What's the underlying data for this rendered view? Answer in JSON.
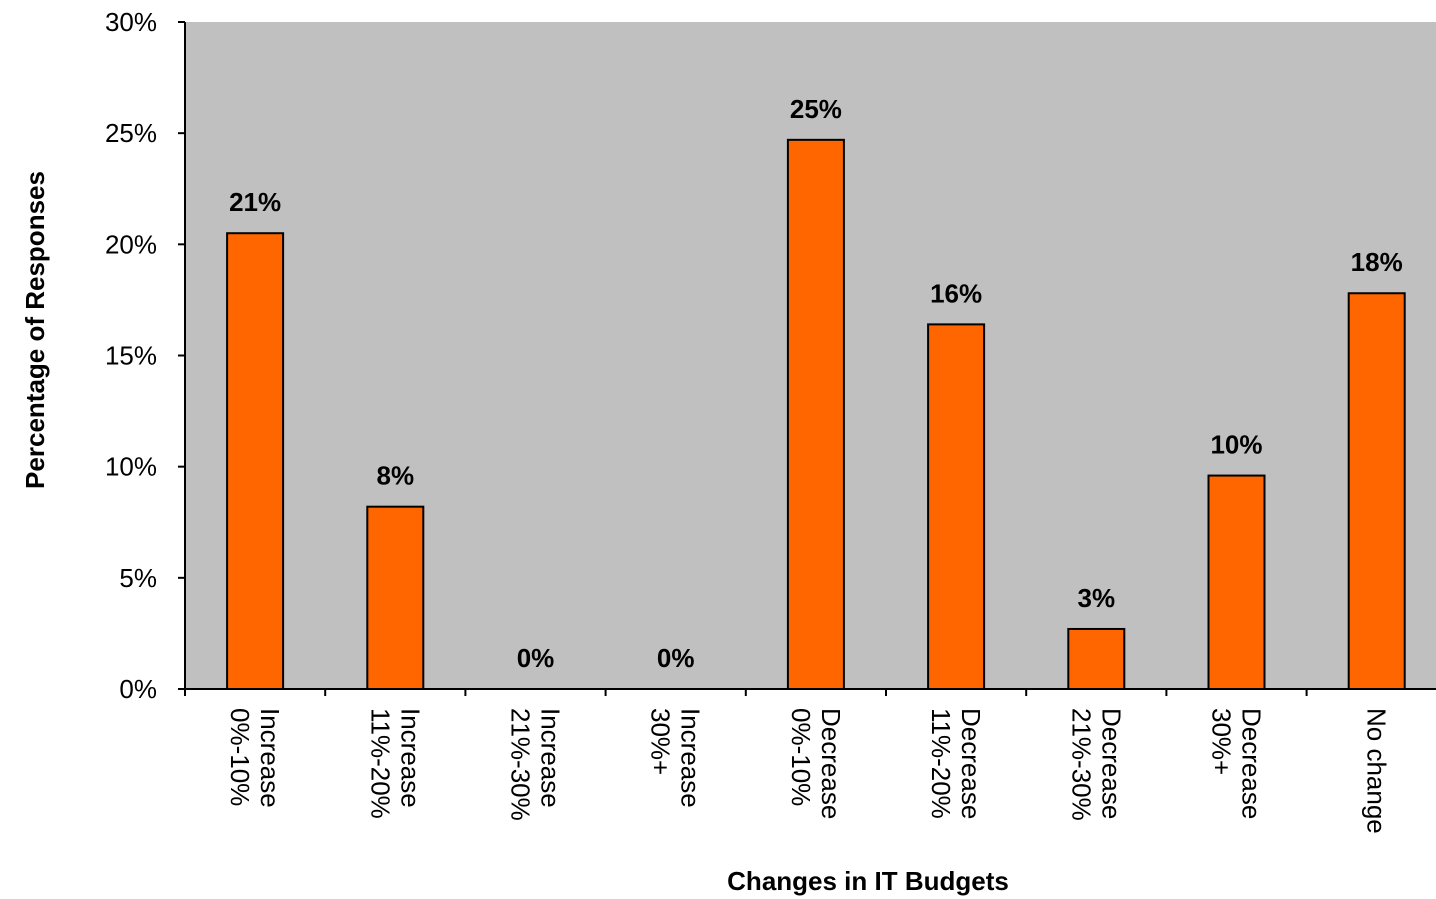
{
  "chart_data": {
    "type": "bar",
    "title": "",
    "xlabel": "Changes in IT Budgets",
    "ylabel": "Percentage of Responses",
    "categories": [
      [
        "Increase",
        "0%-10%"
      ],
      [
        "Increase",
        "11%-20%"
      ],
      [
        "Increase",
        "21%-30%"
      ],
      [
        "Increase",
        "30%+"
      ],
      [
        "Decrease",
        "0%-10%"
      ],
      [
        "Decrease",
        "11%-20%"
      ],
      [
        "Decrease",
        "21%-30%"
      ],
      [
        "Decrease",
        "30%+"
      ],
      [
        "No change"
      ]
    ],
    "values": [
      20.5,
      8.2,
      0,
      0,
      24.7,
      16.4,
      2.7,
      9.6,
      17.8
    ],
    "data_labels": [
      "21%",
      "8%",
      "0%",
      "0%",
      "25%",
      "16%",
      "3%",
      "10%",
      "18%"
    ],
    "y_ticks": [
      "0%",
      "5%",
      "10%",
      "15%",
      "20%",
      "25%",
      "30%"
    ],
    "ylim": [
      0,
      30
    ],
    "grid": false,
    "legend": "none",
    "colors": {
      "bar_fill": "#ff6600",
      "bar_stroke": "#000000",
      "plot_background": "#c0c0c0"
    }
  }
}
